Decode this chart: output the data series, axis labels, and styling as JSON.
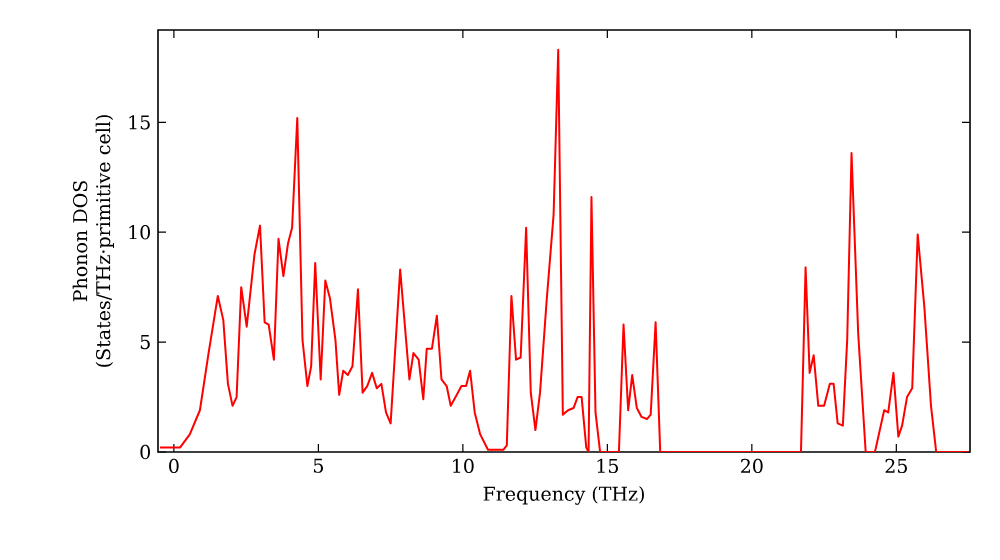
{
  "chart_data": {
    "type": "line",
    "xlabel": "Frequency (THz)",
    "ylabel": "Phonon DOS (States/THz·primitive cell)",
    "xlim": [
      -0.55,
      27.55
    ],
    "ylim": [
      0,
      19.2
    ],
    "xticks": [
      0,
      5,
      10,
      15,
      20,
      25
    ],
    "yticks": [
      0,
      5,
      10,
      15
    ],
    "grid": false,
    "marker": "none",
    "line_style": "solid",
    "series": [
      {
        "color": "#ff0000",
        "x": [
          -0.48,
          0,
          0.21,
          0.55,
          0.9,
          1.2,
          1.52,
          1.71,
          1.87,
          2.03,
          2.17,
          2.33,
          2.52,
          2.79,
          2.98,
          3.14,
          3.28,
          3.46,
          3.62,
          3.79,
          3.95,
          4.09,
          4.27,
          4.45,
          4.62,
          4.75,
          4.89,
          5.08,
          5.24,
          5.4,
          5.59,
          5.72,
          5.86,
          6.02,
          6.18,
          6.37,
          6.53,
          6.69,
          6.86,
          7.02,
          7.18,
          7.34,
          7.5,
          7.83,
          8.15,
          8.29,
          8.47,
          8.63,
          8.75,
          8.93,
          9.1,
          9.26,
          9.44,
          9.58,
          9.79,
          9.95,
          10.11,
          10.25,
          10.41,
          10.6,
          10.87,
          11.4,
          11.52,
          11.68,
          11.84,
          12.0,
          12.19,
          12.35,
          12.51,
          12.67,
          12.9,
          13.14,
          13.3,
          13.46,
          13.64,
          13.83,
          13.97,
          14.11,
          14.27,
          14.35,
          14.45,
          14.59,
          14.75,
          15.4,
          15.56,
          15.72,
          15.86,
          16.02,
          16.18,
          16.37,
          16.5,
          16.67,
          16.83,
          21.7,
          21.86,
          22.0,
          22.14,
          22.3,
          22.5,
          22.7,
          22.83,
          22.97,
          23.15,
          23.3,
          23.45,
          23.68,
          23.94,
          24.26,
          24.58,
          24.72,
          24.9,
          25.07,
          25.2,
          25.37,
          25.55,
          25.74,
          25.97,
          26.2,
          26.38,
          27.5
        ],
        "values": [
          0.2,
          0.2,
          0.2,
          0.8,
          1.9,
          4.5,
          7.1,
          6.0,
          3.1,
          2.1,
          2.5,
          7.5,
          5.7,
          9.0,
          10.3,
          5.9,
          5.8,
          4.2,
          9.7,
          8.0,
          9.5,
          10.2,
          15.2,
          5.1,
          3.0,
          3.9,
          8.6,
          3.3,
          7.8,
          7.0,
          5.1,
          2.6,
          3.7,
          3.5,
          3.9,
          7.4,
          2.7,
          3.0,
          3.6,
          2.9,
          3.1,
          1.8,
          1.3,
          8.3,
          3.3,
          4.5,
          4.2,
          2.4,
          4.7,
          4.7,
          6.2,
          3.3,
          3.0,
          2.1,
          2.6,
          3.0,
          3.0,
          3.7,
          1.8,
          0.8,
          0.1,
          0.1,
          0.3,
          7.1,
          4.2,
          4.3,
          10.2,
          2.7,
          1.0,
          2.7,
          6.9,
          10.8,
          18.3,
          1.7,
          1.9,
          2.0,
          2.5,
          2.5,
          0.2,
          0,
          11.6,
          1.8,
          0,
          0,
          5.8,
          1.9,
          3.5,
          2.0,
          1.6,
          1.5,
          1.7,
          5.9,
          0,
          0,
          8.4,
          3.6,
          4.4,
          2.1,
          2.1,
          3.1,
          3.1,
          1.3,
          1.2,
          5.1,
          13.6,
          5.4,
          0,
          0,
          1.9,
          1.8,
          3.6,
          0.7,
          1.2,
          2.5,
          2.9,
          9.9,
          6.6,
          2.1,
          0,
          0
        ]
      }
    ]
  }
}
